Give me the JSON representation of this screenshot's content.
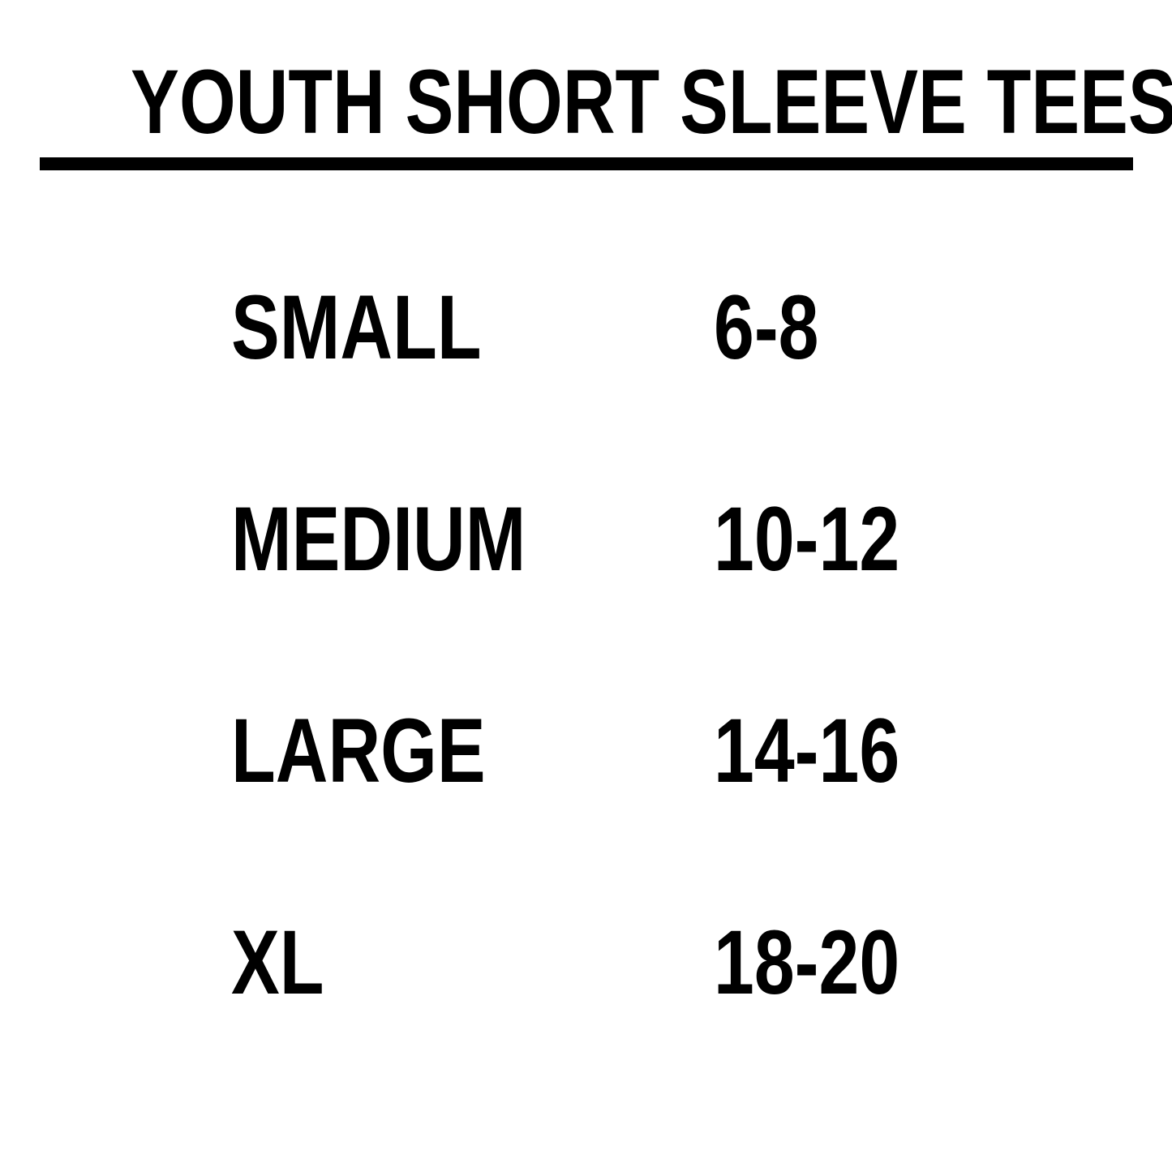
{
  "page": {
    "background_color": "#ffffff",
    "text_color": "#000000"
  },
  "header": {
    "title": "YOUTH SHORT SLEEVE TEES"
  },
  "chart_data": {
    "type": "table",
    "title": "YOUTH SHORT SLEEVE TEES",
    "rows": [
      {
        "size": "SMALL",
        "range": "6-8"
      },
      {
        "size": "MEDIUM",
        "range": "10-12"
      },
      {
        "size": "LARGE",
        "range": "14-16"
      },
      {
        "size": "XL",
        "range": "18-20"
      }
    ]
  }
}
